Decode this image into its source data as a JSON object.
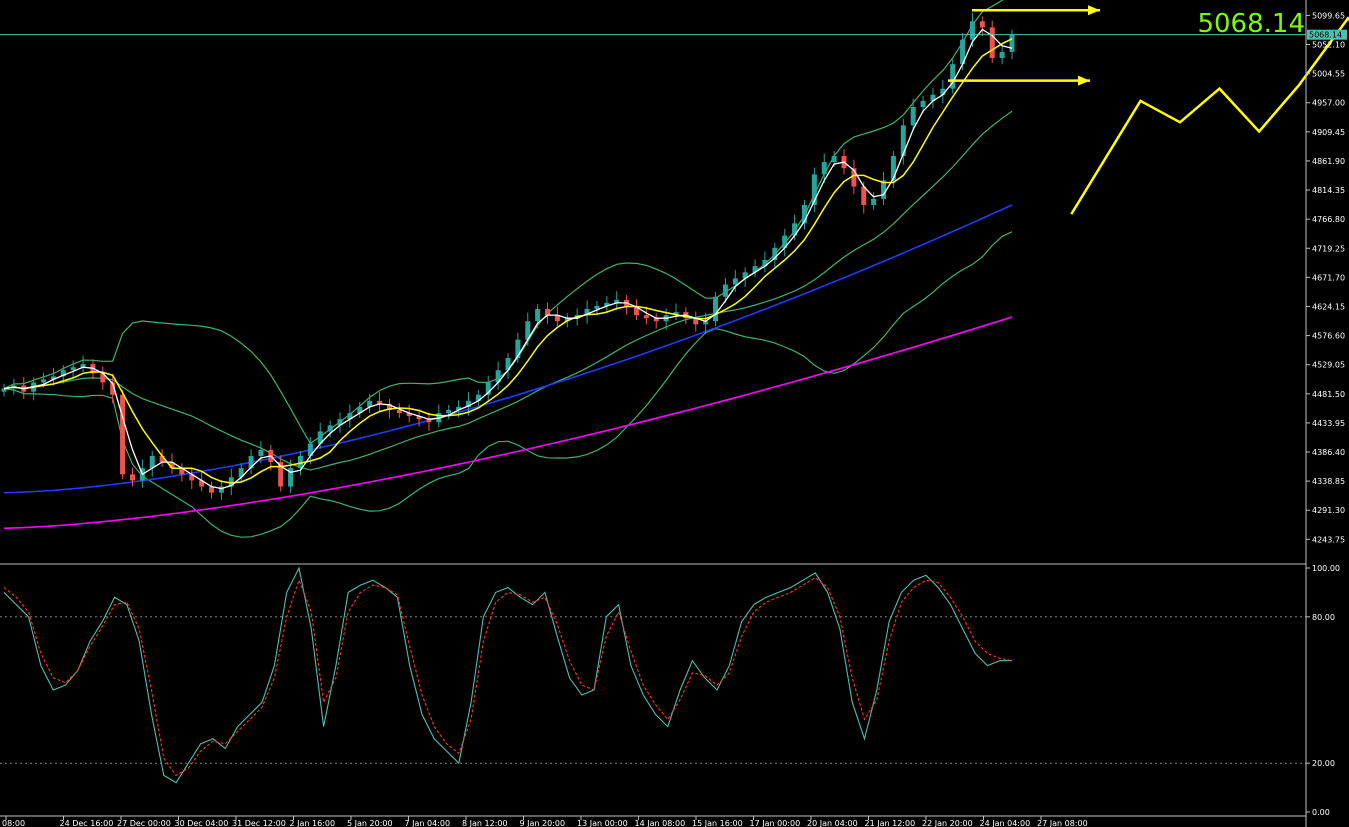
{
  "chart_data": [
    {
      "type": "candlestick",
      "panel": "price",
      "title": "",
      "current_price_label": "5068.14",
      "current_price": 5068.14,
      "y_axis_labels": [
        "5099.65",
        "5052.10",
        "5004.55",
        "4957.00",
        "4909.45",
        "4861.90",
        "4814.35",
        "4766.80",
        "4719.25",
        "4671.70",
        "4624.15",
        "4576.60",
        "4529.05",
        "4481.50",
        "4433.95",
        "4386.40",
        "4338.85",
        "4291.30",
        "4243.75"
      ],
      "ylim": [
        4210,
        5115
      ],
      "x_axis_labels": [
        "08:00",
        "24 Dec 16:00",
        "27 Dec 00:00",
        "30 Dec 04:00",
        "31 Dec 12:00",
        "2 Jan 16:00",
        "5 Jan 20:00",
        "7 Jan 04:00",
        "8 Jan 12:00",
        "9 Jan 20:00",
        "13 Jan 00:00",
        "14 Jan 08:00",
        "15 Jan 16:00",
        "17 Jan 00:00",
        "20 Jan 04:00",
        "21 Jan 12:00",
        "22 Jan 20:00",
        "24 Jan 04:00",
        "27 Jan 08:00"
      ],
      "colors": {
        "background": "#000000",
        "bull_candle": "#26a69a",
        "bear_candle": "#ef5350",
        "bollinger": "#3cb371",
        "ma_fast": "#ffffff",
        "ma_mid": "#ffff00",
        "ma_slow_blue": "#1e3cff",
        "ma_slow_magenta": "#ff00ff",
        "annotation": "#ffff00",
        "price_line": "#4fc0b0",
        "price_big_text": "#7cfc00"
      },
      "candles_close": [
        4490,
        4495,
        4485,
        4500,
        4505,
        4510,
        4520,
        4525,
        4530,
        4515,
        4500,
        4480,
        4350,
        4340,
        4360,
        4380,
        4370,
        4360,
        4350,
        4340,
        4330,
        4320,
        4330,
        4345,
        4360,
        4380,
        4390,
        4370,
        4330,
        4360,
        4380,
        4400,
        4420,
        4430,
        4440,
        4450,
        4460,
        4470,
        4465,
        4455,
        4450,
        4445,
        4440,
        4435,
        4450,
        4455,
        4460,
        4470,
        4480,
        4500,
        4520,
        4540,
        4570,
        4600,
        4620,
        4610,
        4600,
        4605,
        4610,
        4620,
        4625,
        4630,
        4635,
        4625,
        4610,
        4605,
        4600,
        4610,
        4615,
        4605,
        4595,
        4600,
        4640,
        4660,
        4670,
        4680,
        4690,
        4700,
        4720,
        4740,
        4760,
        4790,
        4840,
        4860,
        4870,
        4850,
        4820,
        4790,
        4800,
        4830,
        4870,
        4920,
        4950,
        4960,
        4970,
        4980,
        5020,
        5060,
        5090,
        5080,
        5030,
        5040,
        5068.14
      ],
      "stochastic_panel": {
        "type": "line",
        "y_axis_labels": [
          "100.00",
          "80.00",
          "20.00",
          "0.00"
        ],
        "ylim": [
          0,
          100
        ],
        "levels": [
          80,
          20
        ],
        "series": [
          {
            "color": "#4fc0b0",
            "style": "solid",
            "values": [
              90,
              85,
              80,
              60,
              50,
              52,
              58,
              70,
              78,
              88,
              85,
              70,
              40,
              15,
              12,
              20,
              28,
              30,
              26,
              35,
              40,
              45,
              60,
              90,
              100,
              75,
              35,
              60,
              90,
              93,
              95,
              92,
              88,
              60,
              40,
              30,
              25,
              20,
              45,
              80,
              90,
              92,
              88,
              85,
              90,
              72,
              55,
              48,
              50,
              80,
              85,
              60,
              48,
              40,
              35,
              50,
              62,
              55,
              50,
              60,
              78,
              85,
              88,
              90,
              92,
              95,
              98,
              90,
              75,
              45,
              30,
              50,
              78,
              90,
              95,
              97,
              92,
              85,
              75,
              65,
              60,
              62,
              62
            ]
          },
          {
            "color": "#ff3333",
            "style": "dashed",
            "values": [
              92,
              88,
              82,
              65,
              55,
              53,
              58,
              68,
              76,
              85,
              86,
              75,
              50,
              22,
              15,
              18,
              25,
              29,
              28,
              33,
              38,
              43,
              55,
              80,
              95,
              82,
              45,
              55,
              82,
              90,
              93,
              92,
              89,
              68,
              48,
              35,
              28,
              24,
              38,
              70,
              86,
              90,
              89,
              86,
              88,
              77,
              62,
              52,
              50,
              72,
              82,
              66,
              52,
              44,
              38,
              46,
              57,
              56,
              52,
              57,
              72,
              82,
              86,
              88,
              90,
              93,
              96,
              92,
              80,
              55,
              38,
              46,
              70,
              86,
              92,
              95,
              94,
              88,
              80,
              70,
              65,
              63,
              62
            ]
          }
        ]
      }
    }
  ]
}
